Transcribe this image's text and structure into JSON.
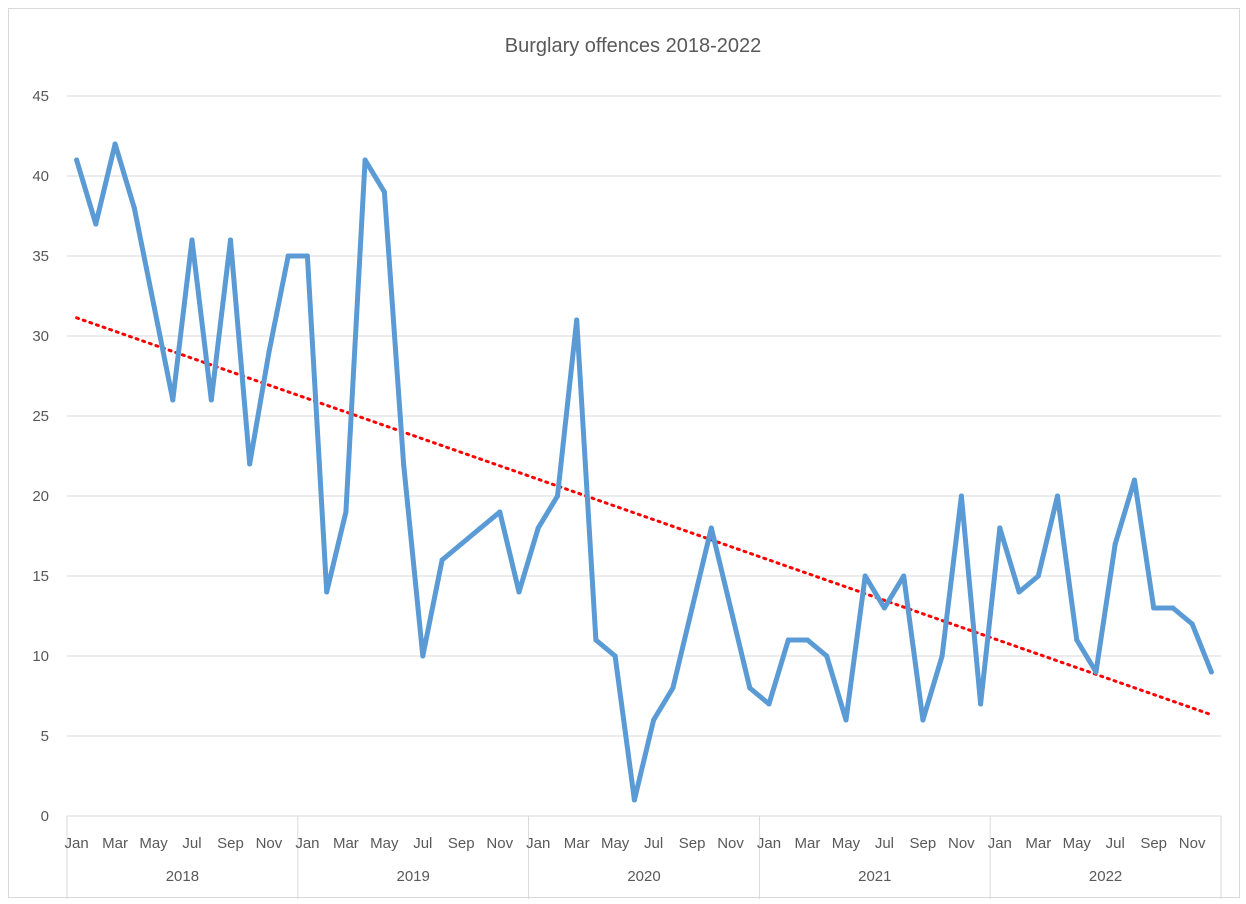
{
  "chart_data": {
    "type": "line",
    "title": "Burglary offences 2018-2022",
    "xlabel": "",
    "ylabel": "",
    "ylim": [
      0,
      45
    ],
    "yticks": [
      0,
      5,
      10,
      15,
      20,
      25,
      30,
      35,
      40,
      45
    ],
    "grid": true,
    "legend": "none",
    "month_labels": [
      "Jan",
      "",
      "Mar",
      "",
      "May",
      "",
      "Jul",
      "",
      "Sep",
      "",
      "Nov",
      ""
    ],
    "years": [
      "2018",
      "2019",
      "2020",
      "2021",
      "2022"
    ],
    "series": [
      {
        "color": "#5b9bd5",
        "values": [
          41,
          37,
          42,
          38,
          32,
          26,
          36,
          26,
          36,
          22,
          29,
          35,
          35,
          14,
          19,
          41,
          39,
          22,
          10,
          16,
          17,
          18,
          19,
          14,
          18,
          20,
          31,
          11,
          10,
          1,
          6,
          8,
          13,
          18,
          13,
          8,
          7,
          11,
          11,
          10,
          6,
          15,
          13,
          15,
          6,
          10,
          20,
          7,
          18,
          14,
          15,
          20,
          11,
          9,
          17,
          21,
          13,
          13,
          12,
          9
        ]
      }
    ],
    "trendline": {
      "type": "linear",
      "style": "dotted",
      "color": "#ff0000"
    }
  }
}
